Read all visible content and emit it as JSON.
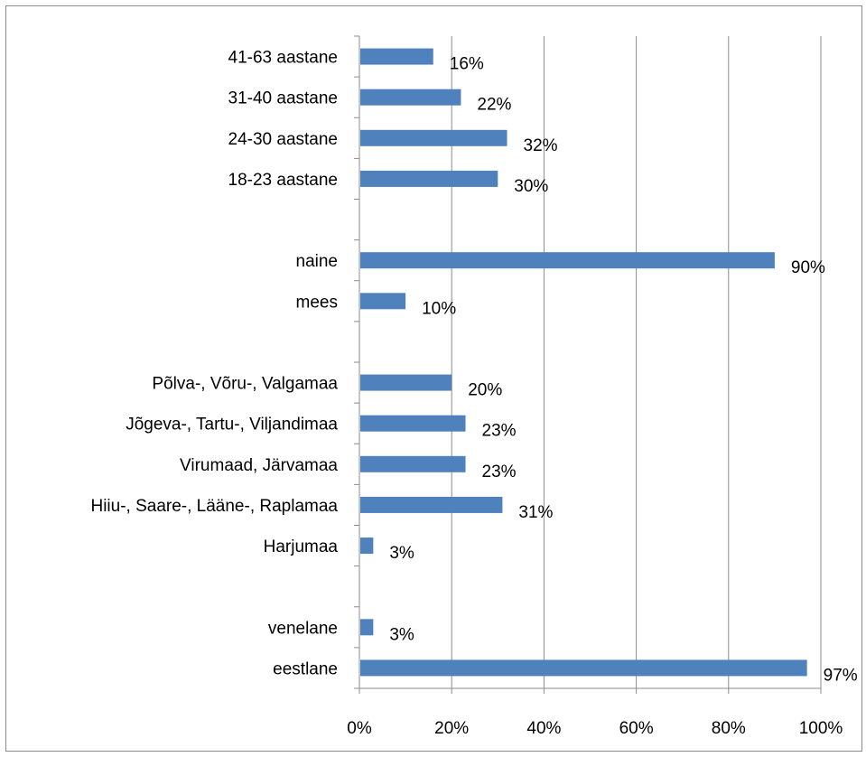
{
  "chart_data": {
    "type": "bar",
    "orientation": "horizontal",
    "title": "",
    "xlabel": "",
    "ylabel": "",
    "xlim": [
      0,
      100
    ],
    "x_ticks": [
      "0%",
      "20%",
      "40%",
      "60%",
      "80%",
      "100%"
    ],
    "grid": "vertical",
    "legend": "none",
    "bar_color": "#4f81bd",
    "slots": [
      {
        "label": "41-63 aastane",
        "value": 16,
        "value_label": "16%"
      },
      {
        "label": "31-40 aastane",
        "value": 22,
        "value_label": "22%"
      },
      {
        "label": "24-30 aastane",
        "value": 32,
        "value_label": "32%"
      },
      {
        "label": "18-23 aastane",
        "value": 30,
        "value_label": "30%"
      },
      null,
      {
        "label": "naine",
        "value": 90,
        "value_label": "90%"
      },
      {
        "label": "mees",
        "value": 10,
        "value_label": "10%"
      },
      null,
      {
        "label": "Põlva-, Võru-, Valgamaa",
        "value": 20,
        "value_label": "20%"
      },
      {
        "label": "Jõgeva-, Tartu-, Viljandimaa",
        "value": 23,
        "value_label": "23%"
      },
      {
        "label": "Virumaad, Järvamaa",
        "value": 23,
        "value_label": "23%"
      },
      {
        "label": "Hiiu-, Saare-, Lääne-, Raplamaa",
        "value": 31,
        "value_label": "31%"
      },
      {
        "label": "Harjumaa",
        "value": 3,
        "value_label": "3%"
      },
      null,
      {
        "label": "venelane",
        "value": 3,
        "value_label": "3%"
      },
      {
        "label": "eestlane",
        "value": 97,
        "value_label": "97%"
      }
    ]
  }
}
